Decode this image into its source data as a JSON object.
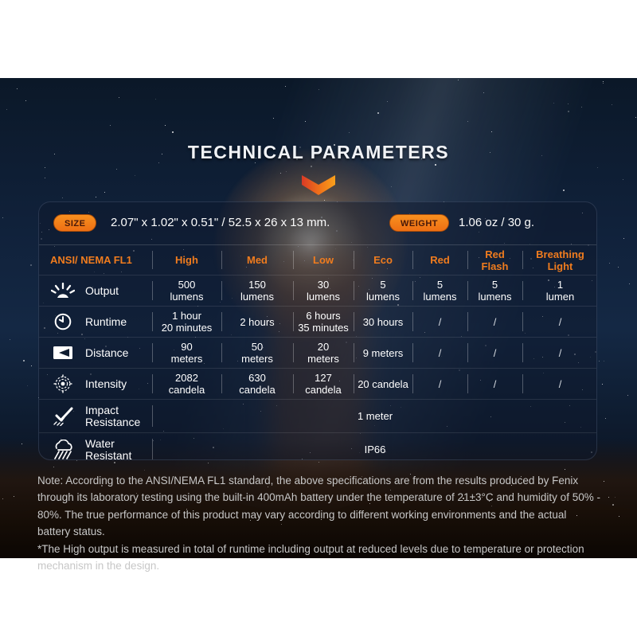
{
  "page": {
    "title": "TECHNICAL PARAMETERS"
  },
  "specs": {
    "size_label": "SIZE",
    "size_value": "2.07\" x 1.02\" x 0.51\" / 52.5 x 26 x 13 mm.",
    "weight_label": "WEIGHT",
    "weight_value": "1.06 oz / 30 g."
  },
  "table": {
    "headers": [
      "ANSI/ NEMA  FL1",
      "High",
      "Med",
      "Low",
      "Eco",
      "Red",
      "Red\nFlash",
      "Breathing\nLight"
    ],
    "rows": [
      {
        "label": "Output",
        "icon": "output-icon",
        "values": [
          "500\nlumens",
          "150\nlumens",
          "30\nlumens",
          "5\nlumens",
          "5\nlumens",
          "5\nlumens",
          "1\nlumen"
        ]
      },
      {
        "label": "Runtime",
        "icon": "runtime-icon",
        "values": [
          "1 hour\n20 minutes",
          "2 hours",
          "6 hours\n35 minutes",
          "30 hours",
          "/",
          "/",
          "/"
        ]
      },
      {
        "label": "Distance",
        "icon": "distance-icon",
        "values": [
          "90\nmeters",
          "50\nmeters",
          "20\nmeters",
          "9 meters",
          "/",
          "/",
          "/"
        ]
      },
      {
        "label": "Intensity",
        "icon": "intensity-icon",
        "values": [
          "2082\ncandela",
          "630\ncandela",
          "127\ncandela",
          "20 candela",
          "/",
          "/",
          "/"
        ]
      }
    ],
    "span_rows": [
      {
        "label": "Impact\nResistance",
        "icon": "impact-icon",
        "value": "1 meter"
      },
      {
        "label": "Water\nResistant",
        "icon": "water-icon",
        "value": "IP66"
      }
    ]
  },
  "notes": {
    "paragraph1": "Note: According to the ANSI/NEMA FL1 standard, the above specifications are from the results produced by Fenix through its laboratory testing using the built-in 400mAh battery under the temperature of 21±3°C and humidity of 50% - 80%. The true performance of this product may vary according to different working environments and the actual battery status.",
    "paragraph2": "*The High output is measured in total of runtime including output at reduced levels due to temperature or protection mechanism in the design."
  },
  "colors": {
    "accent_orange": "#f07c1e",
    "chevron_red": "#dd3b26",
    "chevron_orange": "#f9a01b",
    "panel_navy": "#0d172b",
    "note_gray": "#c7c7c7",
    "pill_text": "#47180a"
  }
}
